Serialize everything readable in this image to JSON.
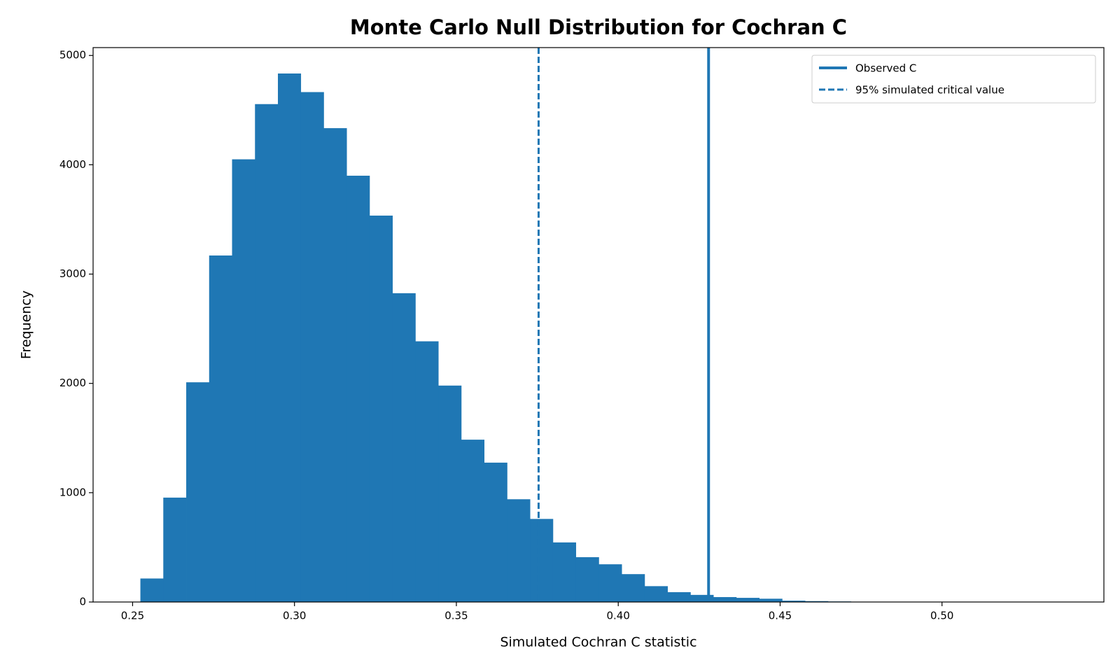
{
  "chart_data": {
    "type": "histogram",
    "title": "Monte Carlo Null Distribution for Cochran C",
    "xlabel": "Simulated Cochran C statistic",
    "ylabel": "Frequency",
    "color": "#1f77b4",
    "bins": [
      0.2524,
      0.25948,
      0.26656,
      0.27364,
      0.28072,
      0.2878,
      0.29488,
      0.30196,
      0.30904,
      0.31612,
      0.3232,
      0.33028,
      0.33736,
      0.34444,
      0.35152,
      0.3586,
      0.36568,
      0.37276,
      0.37984,
      0.38692,
      0.394,
      0.40108,
      0.40816,
      0.41524,
      0.42232,
      0.4294,
      0.43648,
      0.44356,
      0.45064,
      0.45772,
      0.4648,
      0.47188,
      0.47896,
      0.48604,
      0.49312,
      0.5002,
      0.50728,
      0.51436,
      0.52144,
      0.52852,
      0.5356
    ],
    "counts": [
      215,
      955,
      2010,
      3170,
      4050,
      4555,
      4835,
      4665,
      4335,
      3900,
      3535,
      2825,
      2385,
      1980,
      1485,
      1275,
      940,
      760,
      545,
      410,
      345,
      255,
      145,
      90,
      65,
      45,
      38,
      30,
      12,
      8,
      5,
      3,
      2,
      1,
      1,
      0,
      1,
      0,
      0,
      1
    ],
    "lines": [
      {
        "name": "Observed C",
        "x": 0.4279,
        "style": "solid"
      },
      {
        "name": "95% simulated critical value",
        "x": 0.3754,
        "style": "dashed"
      }
    ],
    "legend": "upper right",
    "grid": false,
    "xlim": [
      0.2378,
      0.55
    ],
    "ylim": [
      0,
      5072
    ],
    "xticks": [
      0.25,
      {
        "value": 0.3,
        "label": "0.30"
      },
      0.35,
      {
        "value": 0.4,
        "label": "0.40"
      },
      0.45,
      {
        "value": 0.5,
        "label": "0.50"
      }
    ],
    "yticks": [
      0,
      1000,
      2000,
      3000,
      4000,
      5000
    ]
  }
}
